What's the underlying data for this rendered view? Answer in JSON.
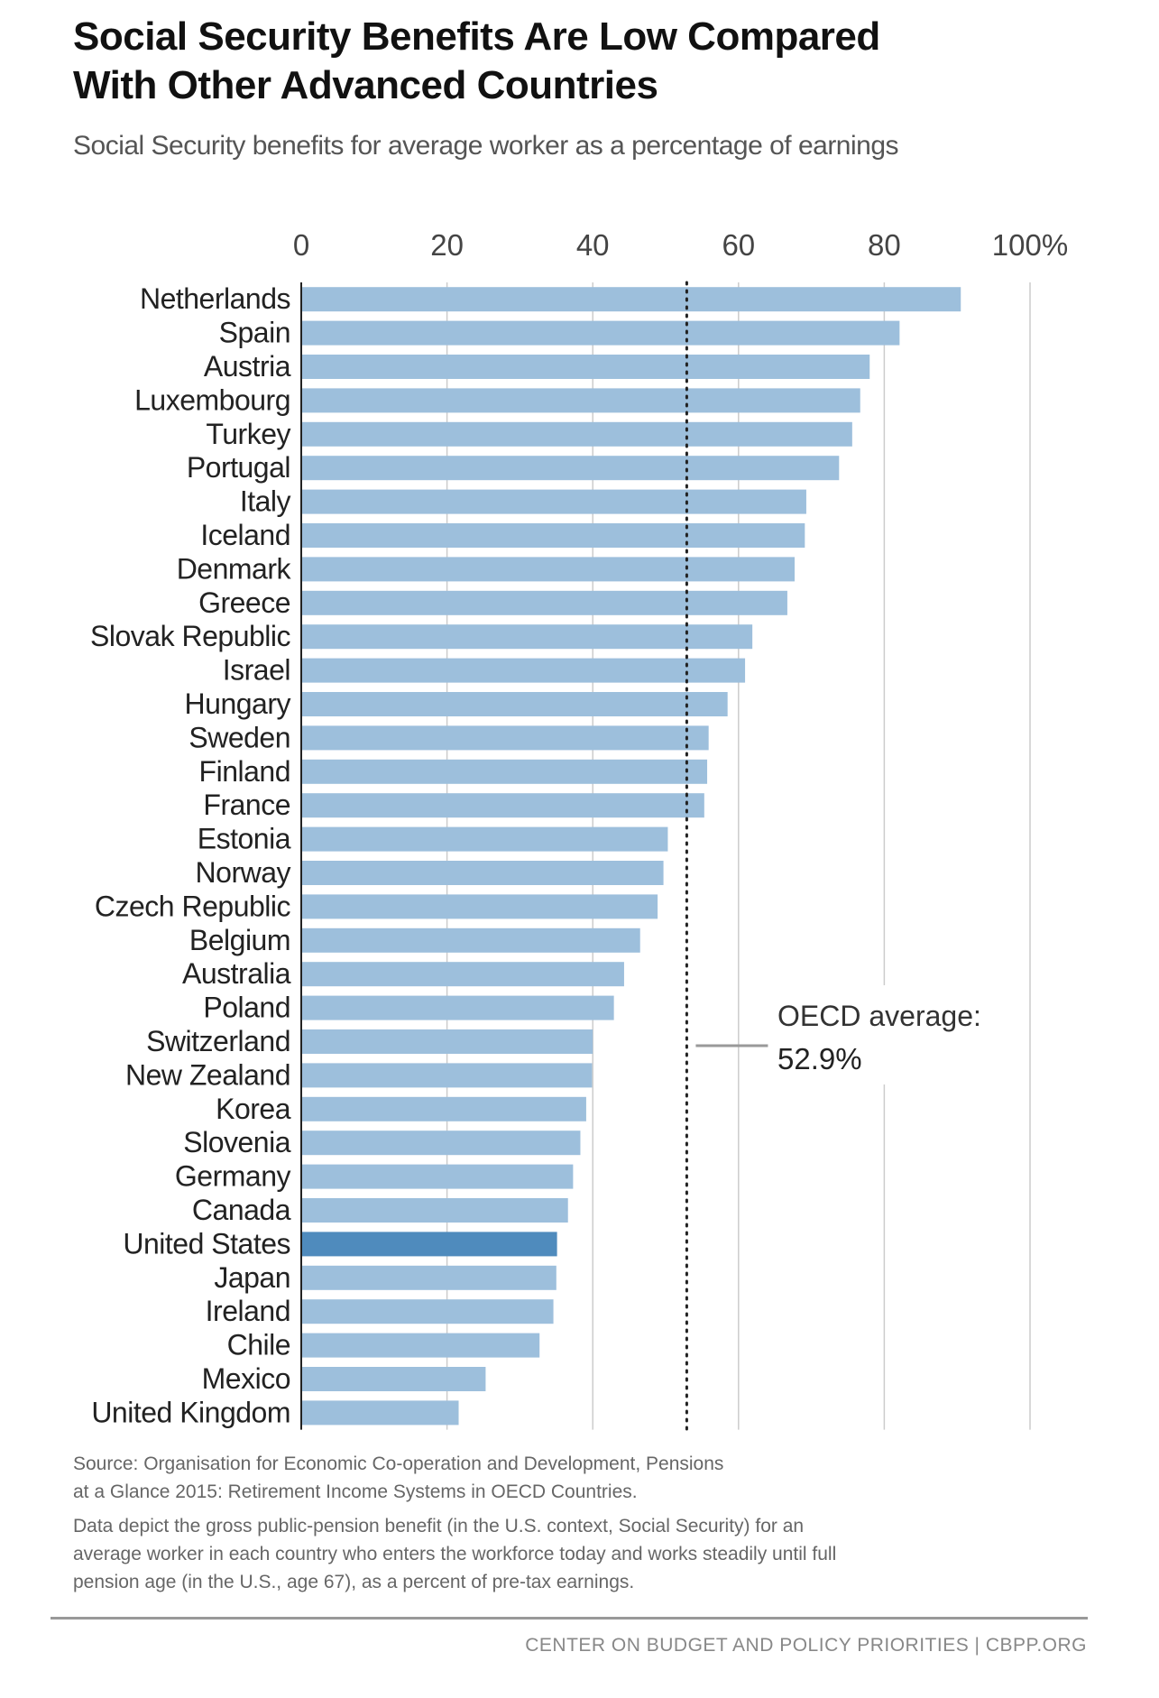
{
  "header": {
    "title_line1": "Social Security Benefits Are Low Compared",
    "title_line2": "With Other Advanced Countries",
    "subtitle": "Social Security benefits for average worker as a percentage of earnings"
  },
  "chart_data": {
    "type": "bar",
    "orientation": "horizontal",
    "title": "Social Security Benefits Are Low Compared With Other Advanced Countries",
    "subtitle": "Social Security benefits for average worker as a percentage of earnings",
    "xlabel": "",
    "ylabel": "",
    "xlim": [
      0,
      100
    ],
    "x_ticks": [
      0,
      20,
      40,
      60,
      80,
      100
    ],
    "x_tick_labels": [
      "0",
      "20",
      "40",
      "60",
      "80",
      "100%"
    ],
    "grid": true,
    "categories": [
      "Netherlands",
      "Spain",
      "Austria",
      "Luxembourg",
      "Turkey",
      "Portugal",
      "Italy",
      "Iceland",
      "Denmark",
      "Greece",
      "Slovak Republic",
      "Israel",
      "Hungary",
      "Sweden",
      "Finland",
      "France",
      "Estonia",
      "Norway",
      "Czech Republic",
      "Belgium",
      "Australia",
      "Poland",
      "Switzerland",
      "New Zealand",
      "Korea",
      "Slovenia",
      "Germany",
      "Canada",
      "United States",
      "Japan",
      "Ireland",
      "Chile",
      "Mexico",
      "United Kingdom"
    ],
    "values": [
      90.5,
      82.1,
      78.0,
      76.7,
      75.6,
      73.8,
      69.3,
      69.1,
      67.7,
      66.7,
      61.9,
      60.9,
      58.5,
      55.9,
      55.7,
      55.3,
      50.3,
      49.7,
      48.9,
      46.5,
      44.3,
      42.9,
      40.0,
      39.9,
      39.1,
      38.3,
      37.3,
      36.6,
      35.1,
      35.0,
      34.6,
      32.7,
      25.3,
      21.6
    ],
    "highlight": "United States",
    "colors": {
      "bar": "#9dbfdc",
      "highlight": "#4f8bbd",
      "reference_line": "#222222",
      "grid": "#cccccc"
    },
    "reference_line": {
      "value": 52.9,
      "label_line1": "OECD average:",
      "label_line2": "52.9%",
      "style": "dotted"
    }
  },
  "notes": {
    "source_line1": "Source: Organisation for Economic Co-operation and Development, Pensions",
    "source_line2": "at a Glance 2015: Retirement Income Systems in OECD Countries.",
    "note_line1": "Data depict the gross public-pension benefit (in the U.S. context, Social Security) for an",
    "note_line2": "average worker in each country who enters the workforce today and works steadily until full",
    "note_line3": "pension age (in the U.S., age 67), as a percent of pre-tax earnings."
  },
  "footer": {
    "credit": "CENTER ON BUDGET AND POLICY PRIORITIES | CBPP.ORG"
  }
}
